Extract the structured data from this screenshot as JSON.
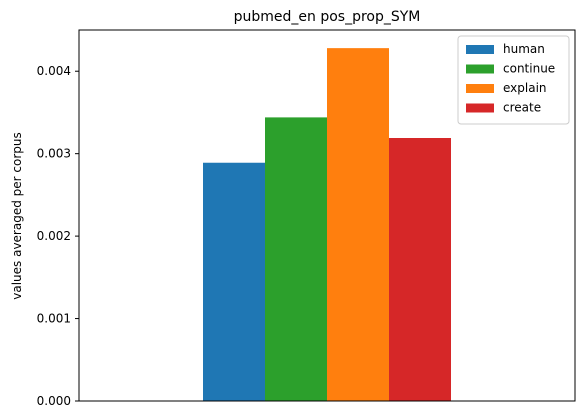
{
  "chart_data": {
    "type": "bar",
    "title": "pubmed_en pos_prop_SYM",
    "xlabel": "",
    "ylabel": "values averaged per corpus",
    "ylim": [
      0,
      0.0045
    ],
    "yticks": [
      "0.000",
      "0.001",
      "0.002",
      "0.003",
      "0.004"
    ],
    "ytick_values": [
      0,
      0.001,
      0.002,
      0.003,
      0.004
    ],
    "grid": false,
    "legend_position": "top-right",
    "series": [
      {
        "name": "human",
        "value": 0.00289,
        "color": "#1f77b4"
      },
      {
        "name": "continue",
        "value": 0.00344,
        "color": "#2ca02c"
      },
      {
        "name": "explain",
        "value": 0.00428,
        "color": "#ff7f0e"
      },
      {
        "name": "create",
        "value": 0.00319,
        "color": "#d62728"
      }
    ]
  }
}
